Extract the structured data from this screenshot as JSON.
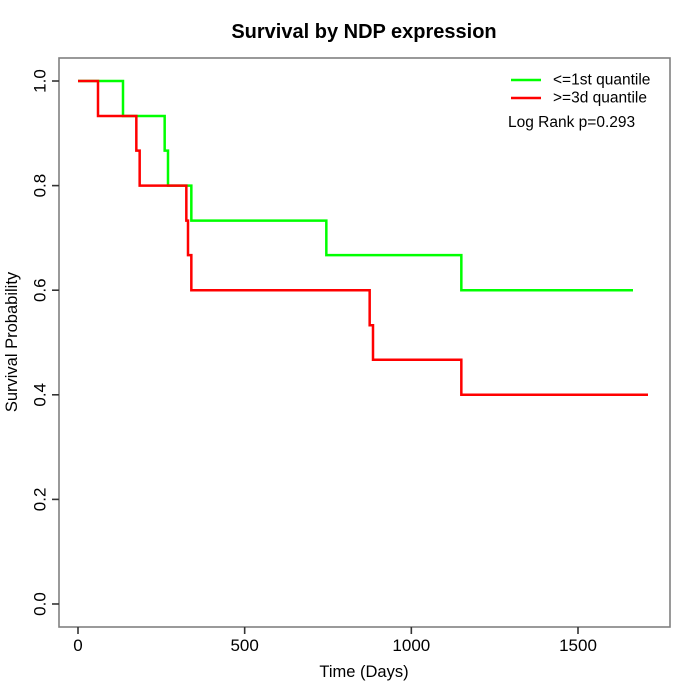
{
  "page": {
    "background": "#FFFFFF"
  },
  "chart_data": {
    "type": "line",
    "variant": "kaplan-meier-step",
    "title": "Survival by NDP expression",
    "xlabel": "Time (Days)",
    "ylabel": "Survival Probability",
    "x_ticks": [
      0,
      500,
      1000,
      1500
    ],
    "x_tick_labels": [
      "0",
      "500",
      "1000",
      "1500"
    ],
    "y_ticks": [
      0.0,
      0.2,
      0.4,
      0.6,
      0.8,
      1.0
    ],
    "y_tick_labels": [
      "0.0",
      "0.2",
      "0.4",
      "0.6",
      "0.8",
      "1.0"
    ],
    "xlim": [
      -57,
      1776
    ],
    "ylim": [
      -0.044,
      1.044
    ],
    "grid": false,
    "legend_position": "top-right",
    "annotation": "Log Rank p=0.293",
    "series": [
      {
        "name": "<=1st quantile",
        "color": "#00FF00",
        "event_times": [
          0,
          135,
          260,
          270,
          340,
          745,
          1150
        ],
        "survival": [
          1.0,
          0.933,
          0.867,
          0.8,
          0.733,
          0.667,
          0.6
        ],
        "end_time": 1665
      },
      {
        "name": ">=3d quantile",
        "color": "#FF0000",
        "event_times": [
          0,
          60,
          175,
          185,
          325,
          330,
          340,
          875,
          885,
          1150
        ],
        "survival": [
          1.0,
          0.933,
          0.867,
          0.8,
          0.733,
          0.667,
          0.6,
          0.533,
          0.467,
          0.4
        ],
        "end_time": 1710
      }
    ],
    "axis_box_color": "#808080",
    "tick_color": "#333333",
    "text_color": "#000000"
  }
}
